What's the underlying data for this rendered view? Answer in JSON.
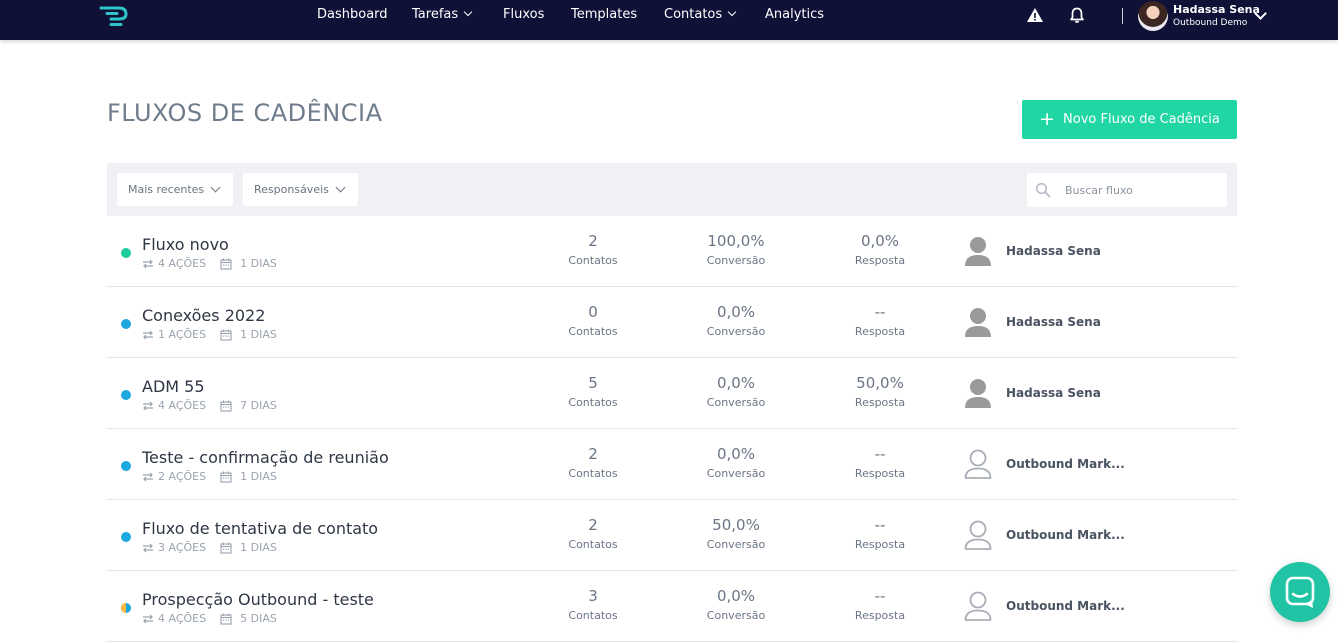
{
  "nav": {
    "items": [
      {
        "label": "Dashboard",
        "dropdown": false
      },
      {
        "label": "Tarefas",
        "dropdown": true
      },
      {
        "label": "Fluxos",
        "dropdown": false
      },
      {
        "label": "Templates",
        "dropdown": false
      },
      {
        "label": "Contatos",
        "dropdown": true
      },
      {
        "label": "Analytics",
        "dropdown": false
      }
    ],
    "icons": [
      "warning-icon",
      "bell-icon"
    ],
    "user": {
      "name": "Hadassa Sena",
      "org": "Outbound Demo"
    }
  },
  "page": {
    "title": "FLUXOS DE CADÊNCIA",
    "new_button": "Novo Fluxo de Cadência"
  },
  "filters": {
    "sort": "Mais recentes",
    "owner": "Responsáveis",
    "search_placeholder": "Buscar fluxo"
  },
  "colors": {
    "brand_dark": "#0f1137",
    "accent": "#1fd6a4",
    "status_active": "#1ecb9a",
    "status_blue": "#1ea8e0",
    "status_orange": "#f6b73c"
  },
  "flows": [
    {
      "name": "Fluxo novo",
      "actions": "4 AÇÕES",
      "days": "1 DIAS",
      "status": "active",
      "contacts": "2",
      "contacts_label": "Contatos",
      "conversion": "100,0%",
      "conversion_label": "Conversão",
      "response": "0,0%",
      "response_label": "Resposta",
      "owner": "Hadassa Sena",
      "owner_avatar": "filled"
    },
    {
      "name": "Conexões 2022",
      "actions": "1 AÇÕES",
      "days": "1 DIAS",
      "status": "blue",
      "contacts": "0",
      "contacts_label": "Contatos",
      "conversion": "0,0%",
      "conversion_label": "Conversão",
      "response": "--",
      "response_label": "Resposta",
      "owner": "Hadassa Sena",
      "owner_avatar": "filled"
    },
    {
      "name": "ADM 55",
      "actions": "4 AÇÕES",
      "days": "7 DIAS",
      "status": "blue",
      "contacts": "5",
      "contacts_label": "Contatos",
      "conversion": "0,0%",
      "conversion_label": "Conversão",
      "response": "50,0%",
      "response_label": "Resposta",
      "owner": "Hadassa Sena",
      "owner_avatar": "filled"
    },
    {
      "name": "Teste - confirmação de reunião",
      "actions": "2 AÇÕES",
      "days": "1 DIAS",
      "status": "blue",
      "contacts": "2",
      "contacts_label": "Contatos",
      "conversion": "0,0%",
      "conversion_label": "Conversão",
      "response": "--",
      "response_label": "Resposta",
      "owner": "Outbound Mark...",
      "owner_avatar": "outline"
    },
    {
      "name": "Fluxo de tentativa de contato",
      "actions": "3 AÇÕES",
      "days": "1 DIAS",
      "status": "blue",
      "contacts": "2",
      "contacts_label": "Contatos",
      "conversion": "50,0%",
      "conversion_label": "Conversão",
      "response": "--",
      "response_label": "Resposta",
      "owner": "Outbound Mark...",
      "owner_avatar": "outline"
    },
    {
      "name": "Prospecção Outbound - teste",
      "actions": "4 AÇÕES",
      "days": "5 DIAS",
      "status": "mixed",
      "contacts": "3",
      "contacts_label": "Contatos",
      "conversion": "0,0%",
      "conversion_label": "Conversão",
      "response": "--",
      "response_label": "Resposta",
      "owner": "Outbound Mark...",
      "owner_avatar": "outline"
    }
  ]
}
